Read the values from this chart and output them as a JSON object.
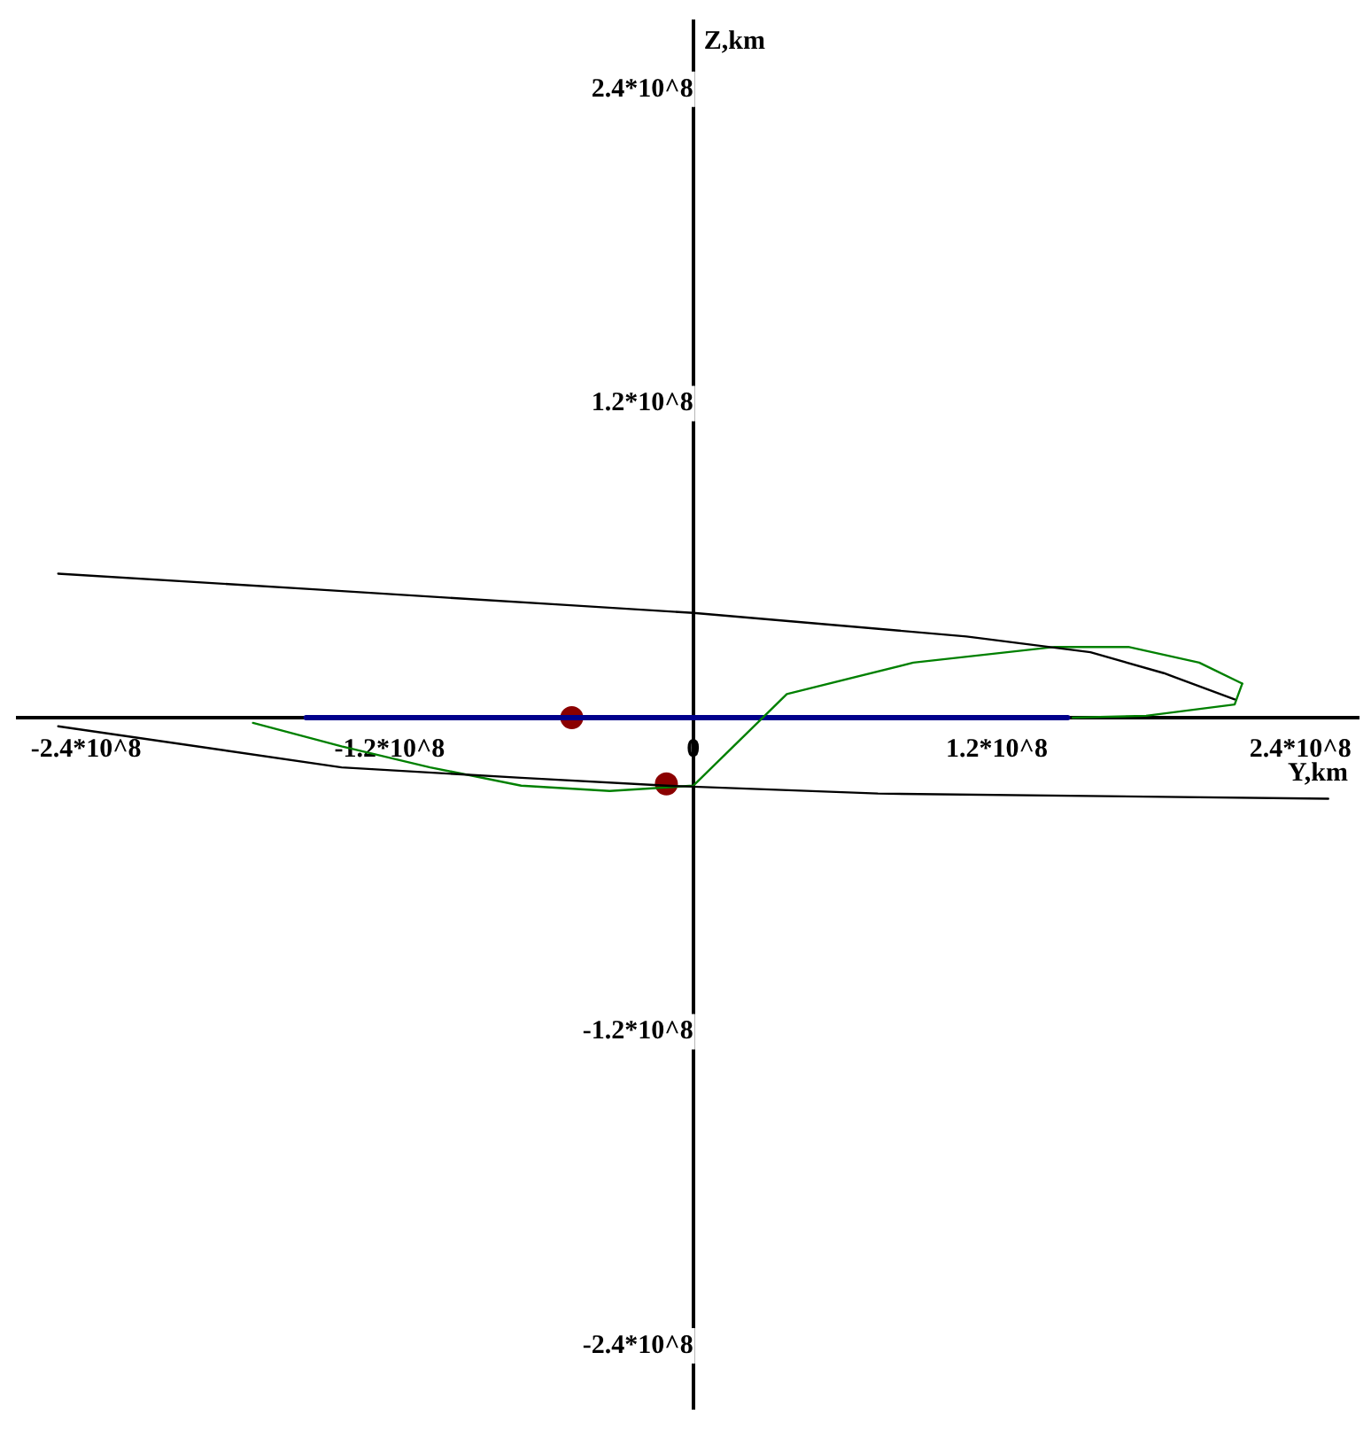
{
  "chart_data": {
    "type": "line",
    "xlabel": "Y,km",
    "ylabel": "Z,km",
    "xlim": [
      -267000000,
      263000000
    ],
    "ylim": [
      -264000000,
      266000000
    ],
    "xticks": [
      {
        "value": -240000000,
        "label": "-2.4*10^8"
      },
      {
        "value": -120000000,
        "label": "-1.2*10^8"
      },
      0,
      {
        "value": 120000000,
        "label": "1.2*10^8"
      },
      {
        "value": 240000000,
        "label": "2.4*10^8"
      }
    ],
    "yticks": [
      {
        "value": -240000000,
        "label": "-2.4*10^8"
      },
      {
        "value": -120000000,
        "label": "-1.2*10^8"
      },
      {
        "value": 120000000,
        "label": "1.2*10^8"
      },
      {
        "value": 240000000,
        "label": "2.4*10^8"
      }
    ],
    "grid": false,
    "legend": false,
    "line_style": "solid",
    "series": [
      {
        "color": "#000000",
        "x": [
          -251000000,
          -150000000,
          -50000000,
          0,
          108000000,
          157000000,
          186000000,
          214000000
        ],
        "values": [
          55000000,
          49000000,
          43000000,
          40000000,
          31000000,
          25000000,
          17000000,
          7000000
        ]
      },
      {
        "color": "#000000",
        "x": [
          -251000000,
          -139000000,
          -68000000,
          -10600000,
          73000000,
          251000000
        ],
        "values": [
          -3300000,
          -19000000,
          -23000000,
          -26000000,
          -29000000,
          -31000000
        ]
      },
      {
        "color": "#008000",
        "x": [
          -174000000,
          -139000000,
          -104000000,
          -68000000,
          -33000000,
          0,
          37000000,
          87000000,
          143000000,
          172000000,
          200000000,
          217000000
        ],
        "values": [
          -2000000,
          -11000000,
          -19000000,
          -26000000,
          -28000000,
          -26000000,
          9000000,
          21000000,
          27000000,
          27000000,
          21000000,
          13000000
        ]
      },
      {
        "color": "#008000",
        "x": [
          150000000,
          179000000,
          214000000,
          217000000
        ],
        "values": [
          0,
          700000,
          5000000,
          13000000
        ]
      },
      {
        "color": "#00008b",
        "x": [
          -153000000,
          148000000
        ],
        "values": [
          0,
          0
        ]
      },
      {
        "type": "scatter",
        "marker": "circle",
        "color": "#8b0000",
        "x": [
          -48000000,
          -10600000
        ],
        "values": [
          0,
          -25300000
        ]
      }
    ]
  }
}
